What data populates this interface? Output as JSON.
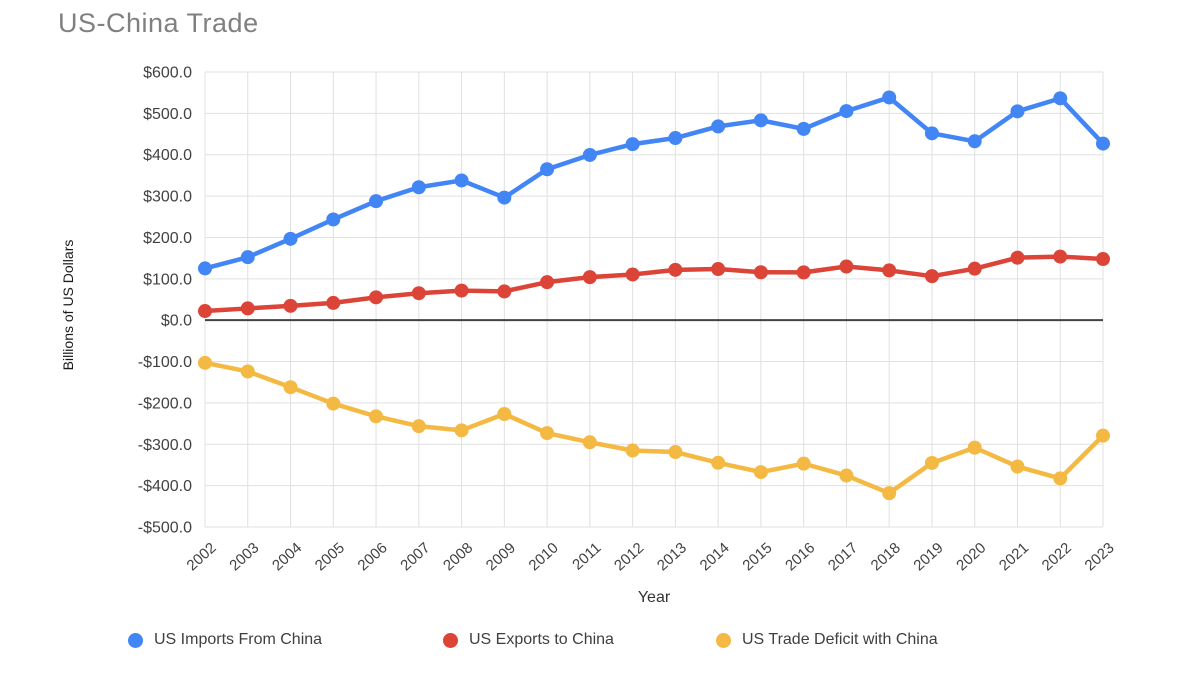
{
  "page": {
    "background": "#ffffff"
  },
  "chart_data": {
    "type": "line",
    "title": "US-China Trade",
    "xlabel": "Year",
    "ylabel": "Billions of US Dollars",
    "grid": true,
    "legend_position": "bottom",
    "ylim": [
      -500,
      600
    ],
    "ytick_step": 100,
    "y_ticks": {
      "values": [
        600,
        500,
        400,
        300,
        200,
        100,
        0,
        -100,
        -200,
        -300,
        -400,
        -500
      ],
      "labels": [
        "$600.0",
        "$500.0",
        "$400.0",
        "$300.0",
        "$200.0",
        "$100.0",
        "$0.0",
        "-$100.0",
        "-$200.0",
        "-$300.0",
        "-$400.0",
        "-$500.0"
      ]
    },
    "categories": [
      "2002",
      "2003",
      "2004",
      "2005",
      "2006",
      "2007",
      "2008",
      "2009",
      "2010",
      "2011",
      "2012",
      "2013",
      "2014",
      "2015",
      "2016",
      "2017",
      "2018",
      "2019",
      "2020",
      "2021",
      "2022",
      "2023"
    ],
    "series": [
      {
        "name": "US Imports From China",
        "color": "#4285F4",
        "values": [
          125.2,
          152.4,
          196.7,
          243.5,
          287.8,
          321.4,
          337.8,
          296.4,
          364.9,
          399.4,
          425.6,
          440.4,
          468.5,
          483.2,
          462.5,
          505.5,
          538.5,
          451.7,
          432.5,
          504.9,
          536.3,
          426.9
        ]
      },
      {
        "name": "US Exports to China",
        "color": "#DB4437",
        "values": [
          22.1,
          28.4,
          34.7,
          41.8,
          55.2,
          65.2,
          71.5,
          69.6,
          91.9,
          104.1,
          110.5,
          121.7,
          123.7,
          115.9,
          115.6,
          129.8,
          120.3,
          106.4,
          124.5,
          151.1,
          153.8,
          147.8
        ]
      },
      {
        "name": "US Trade Deficit with China",
        "color": "#F4B942",
        "values": [
          -103.1,
          -124.0,
          -162.0,
          -201.6,
          -232.5,
          -256.2,
          -266.3,
          -226.8,
          -273.0,
          -295.2,
          -315.1,
          -318.7,
          -344.8,
          -367.3,
          -346.8,
          -375.6,
          -418.2,
          -345.2,
          -308.1,
          -353.8,
          -382.5,
          -279.1
        ]
      }
    ],
    "style": {
      "grid_color": "#e0e0e0",
      "zero_line_color": "#424242",
      "tick_label_color": "#424242",
      "title_color": "#808080",
      "line_width": 4.5,
      "marker_radius": 7
    }
  }
}
